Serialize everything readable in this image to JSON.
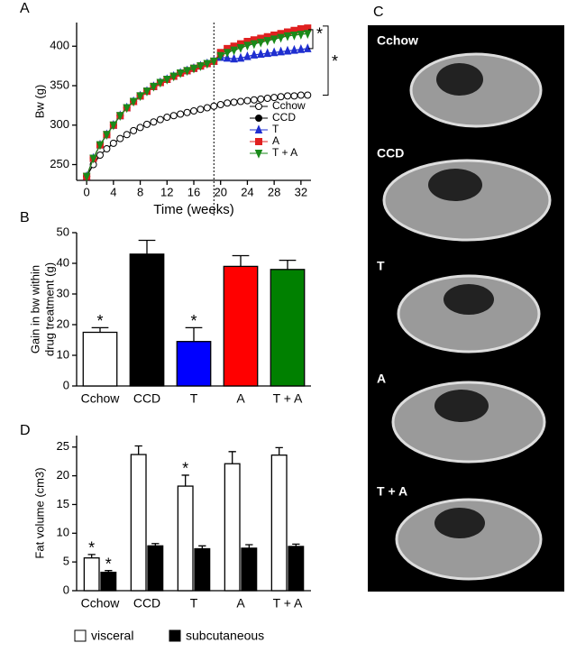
{
  "panel_labels": [
    "A",
    "B",
    "C",
    "D"
  ],
  "chart_data": [
    {
      "type": "line",
      "xlabel": "Time (weeks)",
      "ylabel": "Bw (g)",
      "x": [
        0,
        1,
        2,
        3,
        4,
        5,
        6,
        7,
        8,
        9,
        10,
        11,
        12,
        13,
        14,
        15,
        16,
        17,
        18,
        19,
        20,
        21,
        22,
        23,
        24,
        25,
        26,
        27,
        28,
        29,
        30,
        31,
        32,
        33
      ],
      "xlim": [
        -1.5,
        33.5
      ],
      "xticks": [
        0,
        4,
        8,
        12,
        16,
        20,
        24,
        28,
        32
      ],
      "ylim": [
        230,
        430
      ],
      "yticks": [
        250,
        300,
        350,
        400
      ],
      "vline_x": 19,
      "annotations": [
        "*",
        "*"
      ],
      "series": [
        {
          "name": "Cchow",
          "color": "#000000",
          "open": true,
          "marker": "circle",
          "values": [
            235,
            250,
            262,
            270,
            277,
            283,
            288,
            293,
            297,
            301,
            304,
            307,
            310,
            312,
            314,
            316,
            318,
            320,
            322,
            324,
            326,
            328,
            329,
            330,
            331,
            332,
            333,
            334,
            335,
            336,
            337,
            337,
            338,
            338
          ]
        },
        {
          "name": "CCD",
          "color": "#000000",
          "marker": "circle",
          "values": [
            235,
            258,
            275,
            288,
            300,
            312,
            322,
            330,
            337,
            343,
            349,
            354,
            358,
            362,
            366,
            369,
            372,
            375,
            378,
            381,
            390,
            395,
            398,
            401,
            404,
            406,
            408,
            410,
            412,
            414,
            416,
            418,
            420,
            421
          ]
        },
        {
          "name": "T",
          "color": "#1f2fd0",
          "marker": "triangle",
          "values": [
            235,
            258,
            275,
            288,
            300,
            312,
            322,
            330,
            337,
            343,
            349,
            354,
            358,
            362,
            366,
            369,
            372,
            375,
            378,
            381,
            386,
            385,
            384,
            385,
            387,
            389,
            390,
            391,
            392,
            393,
            394,
            395,
            396,
            397
          ]
        },
        {
          "name": "A",
          "color": "#e02020",
          "marker": "square",
          "values": [
            235,
            258,
            275,
            288,
            300,
            312,
            322,
            330,
            337,
            343,
            349,
            354,
            358,
            362,
            366,
            369,
            372,
            375,
            378,
            381,
            392,
            397,
            400,
            403,
            406,
            408,
            410,
            412,
            414,
            416,
            418,
            420,
            422,
            423
          ]
        },
        {
          "name": "T + A",
          "color": "#1a8a1a",
          "marker": "triangle-down",
          "values": [
            235,
            258,
            275,
            288,
            300,
            312,
            322,
            330,
            337,
            343,
            349,
            354,
            358,
            362,
            366,
            369,
            372,
            375,
            378,
            381,
            388,
            392,
            395,
            398,
            401,
            403,
            405,
            407,
            409,
            411,
            413,
            414,
            415,
            416
          ]
        }
      ]
    },
    {
      "type": "bar",
      "ylabel": [
        "Gain in bw within",
        "drug treatment (g)"
      ],
      "categories": [
        "Cchow",
        "CCD",
        "T",
        "A",
        "T + A"
      ],
      "values": [
        17.5,
        43,
        14.5,
        39,
        38
      ],
      "errors": [
        1.5,
        4.5,
        4.5,
        3.5,
        3
      ],
      "colors": [
        "#ffffff",
        "#000000",
        "#0000ff",
        "#ff0000",
        "#008000"
      ],
      "significance": [
        "*",
        null,
        "*",
        null,
        null
      ],
      "ylim": [
        0,
        50
      ],
      "yticks": [
        0,
        10,
        20,
        30,
        40,
        50
      ]
    },
    {
      "type": "bar",
      "ylabel": "Fat volume (cm3)",
      "categories": [
        "Cchow",
        "CCD",
        "T",
        "A",
        "T + A"
      ],
      "ylim": [
        0,
        27
      ],
      "yticks": [
        0,
        5,
        10,
        15,
        20,
        25
      ],
      "series": [
        {
          "name": "visceral",
          "color": "#ffffff",
          "values": [
            5.7,
            23.7,
            18.2,
            22.1,
            23.6
          ],
          "errors": [
            0.6,
            1.5,
            1.9,
            2.1,
            1.3
          ],
          "significance": [
            "*",
            null,
            "*",
            null,
            null
          ]
        },
        {
          "name": "subcutaneous",
          "color": "#000000",
          "values": [
            3.2,
            7.8,
            7.3,
            7.4,
            7.7
          ],
          "errors": [
            0.3,
            0.4,
            0.5,
            0.6,
            0.4
          ],
          "significance": [
            "*",
            null,
            null,
            null,
            null
          ]
        }
      ]
    }
  ],
  "images": {
    "labels": [
      "Cchow",
      "CCD",
      "T",
      "A",
      "T + A"
    ]
  }
}
